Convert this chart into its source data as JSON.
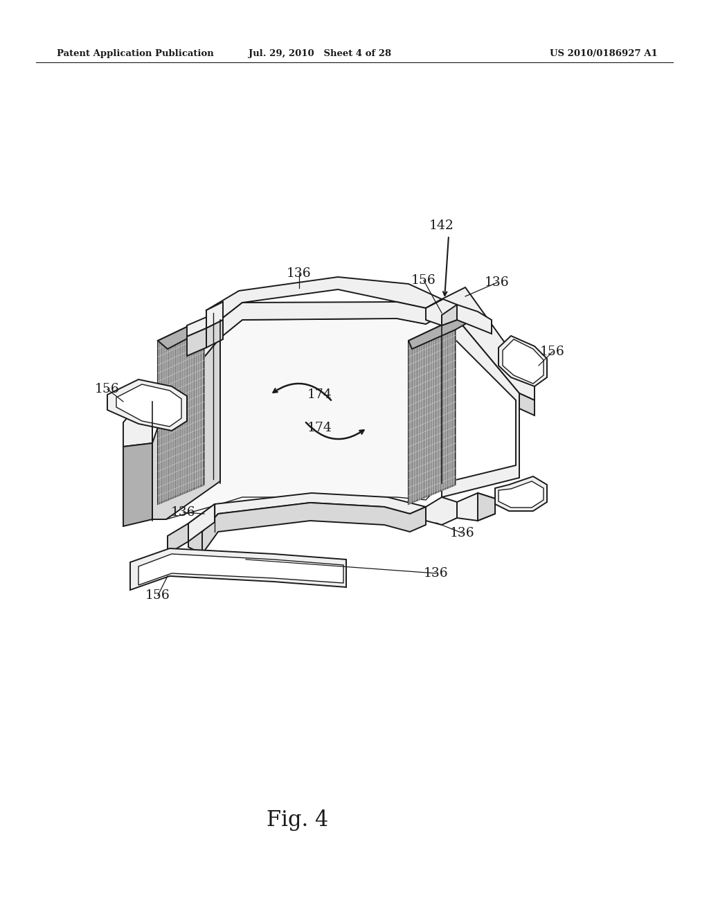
{
  "bg_color": "#ffffff",
  "line_color": "#1a1a1a",
  "header_left": "Patent Application Publication",
  "header_center": "Jul. 29, 2010   Sheet 4 of 28",
  "header_right": "US 2010/0186927 A1",
  "figure_label": "Fig. 4",
  "gray_light": "#f0f0f0",
  "gray_mid": "#d8d8d8",
  "gray_dark": "#b0b0b0",
  "gray_fin": "#909090",
  "gray_fin_line": "#c8c8c8"
}
